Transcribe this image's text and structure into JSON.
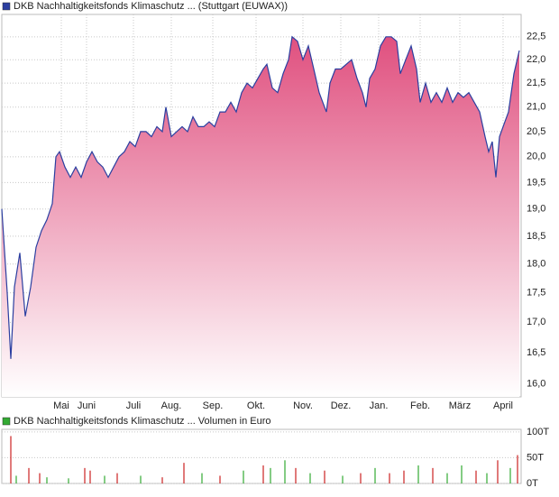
{
  "chart_data": [
    {
      "type": "area",
      "log_scale": true,
      "grid": true,
      "x": [
        1,
        4,
        6,
        8,
        11,
        14,
        17,
        20,
        23,
        26,
        29,
        31,
        33,
        36,
        39,
        42,
        45,
        48,
        51,
        54,
        57,
        60,
        63,
        66,
        69,
        72,
        75,
        78,
        81,
        84,
        87,
        90,
        92,
        95,
        98,
        101,
        104,
        107,
        110,
        113,
        116,
        119,
        122,
        125,
        128,
        131,
        134,
        137,
        140,
        143,
        146,
        148,
        151,
        154,
        157,
        160,
        162,
        165,
        168,
        171,
        174,
        177,
        179,
        181,
        183,
        186,
        189,
        192,
        195,
        198,
        201,
        203,
        205,
        208,
        211,
        214,
        217,
        220,
        222,
        225,
        228,
        231,
        233,
        236,
        239,
        242,
        245,
        248,
        251,
        254,
        257,
        260,
        263,
        266,
        269,
        271,
        273,
        275,
        277,
        279,
        282,
        285,
        288
      ],
      "series": [
        {
          "name": "DKB Nachhaltigkeitsfonds Klimaschutz ... (Stuttgart (EUWAX))",
          "color": "#2b3fa0",
          "fill_color": "#e0507f",
          "values": [
            19.0,
            17.5,
            16.4,
            17.6,
            18.2,
            17.1,
            17.6,
            18.3,
            18.6,
            18.8,
            19.1,
            20.0,
            20.1,
            19.8,
            19.6,
            19.8,
            19.6,
            19.9,
            20.1,
            19.9,
            19.8,
            19.6,
            19.8,
            20.0,
            20.1,
            20.3,
            20.2,
            20.5,
            20.5,
            20.4,
            20.6,
            20.5,
            21.0,
            20.4,
            20.5,
            20.6,
            20.5,
            20.8,
            20.6,
            20.6,
            20.7,
            20.6,
            20.9,
            20.9,
            21.1,
            20.9,
            21.3,
            21.5,
            21.4,
            21.6,
            21.8,
            21.9,
            21.4,
            21.3,
            21.7,
            22.0,
            22.5,
            22.4,
            22.0,
            22.3,
            21.8,
            21.3,
            21.1,
            20.9,
            21.5,
            21.8,
            21.8,
            21.9,
            22.0,
            21.6,
            21.3,
            21.0,
            21.6,
            21.8,
            22.3,
            22.5,
            22.5,
            22.4,
            21.7,
            22.0,
            22.3,
            21.8,
            21.1,
            21.5,
            21.1,
            21.3,
            21.1,
            21.4,
            21.1,
            21.3,
            21.2,
            21.3,
            21.1,
            20.9,
            20.4,
            20.1,
            20.3,
            19.6,
            20.4,
            20.6,
            20.9,
            21.7,
            22.2
          ]
        }
      ],
      "xlim": [
        1,
        289
      ],
      "xticks": [
        {
          "value": 34,
          "label": "Mai"
        },
        {
          "value": 48,
          "label": "Juni"
        },
        {
          "value": 74,
          "label": "Juli"
        },
        {
          "value": 95,
          "label": "Aug."
        },
        {
          "value": 118,
          "label": "Sep."
        },
        {
          "value": 142,
          "label": "Okt."
        },
        {
          "value": 168,
          "label": "Nov."
        },
        {
          "value": 189,
          "label": "Dez."
        },
        {
          "value": 210,
          "label": "Jan."
        },
        {
          "value": 233,
          "label": "Feb."
        },
        {
          "value": 255,
          "label": "März"
        },
        {
          "value": 279,
          "label": "April"
        }
      ],
      "ylim": [
        15.8,
        23.0
      ],
      "yticks": [
        {
          "value": 16.0,
          "label": "16,0"
        },
        {
          "value": 16.5,
          "label": "16,5"
        },
        {
          "value": 17.0,
          "label": "17,0"
        },
        {
          "value": 17.5,
          "label": "17,5"
        },
        {
          "value": 18.0,
          "label": "18,0"
        },
        {
          "value": 18.5,
          "label": "18,5"
        },
        {
          "value": 19.0,
          "label": "19,0"
        },
        {
          "value": 19.5,
          "label": "19,5"
        },
        {
          "value": 20.0,
          "label": "20,0"
        },
        {
          "value": 20.5,
          "label": "20,5"
        },
        {
          "value": 21.0,
          "label": "21,0"
        },
        {
          "value": 21.5,
          "label": "21,5"
        },
        {
          "value": 22.0,
          "label": "22,0"
        },
        {
          "value": 22.5,
          "label": "22,5"
        }
      ]
    },
    {
      "type": "bar",
      "grid": true,
      "x": [
        6,
        9,
        16,
        22,
        26,
        38,
        47,
        50,
        58,
        65,
        78,
        90,
        102,
        112,
        122,
        135,
        146,
        150,
        158,
        164,
        172,
        180,
        190,
        200,
        208,
        216,
        224,
        232,
        240,
        248,
        256,
        264,
        270,
        276,
        283,
        287
      ],
      "series": [
        {
          "name": "DKB Nachhaltigkeitsfonds Klimaschutz ... Volumen in Euro",
          "color": "#33aa33",
          "values": [
            92000,
            15000,
            30000,
            20000,
            12000,
            10000,
            30000,
            25000,
            15000,
            20000,
            15000,
            12000,
            40000,
            20000,
            15000,
            25000,
            35000,
            30000,
            45000,
            30000,
            20000,
            25000,
            15000,
            20000,
            30000,
            20000,
            25000,
            35000,
            30000,
            20000,
            35000,
            25000,
            20000,
            45000,
            30000,
            55000
          ],
          "colors": [
            "#cc2222",
            "#33aa33",
            "#cc2222",
            "#cc2222",
            "#33aa33",
            "#33aa33",
            "#cc2222",
            "#cc2222",
            "#33aa33",
            "#cc2222",
            "#33aa33",
            "#cc2222",
            "#cc2222",
            "#33aa33",
            "#cc2222",
            "#33aa33",
            "#cc2222",
            "#33aa33",
            "#33aa33",
            "#cc2222",
            "#33aa33",
            "#cc2222",
            "#33aa33",
            "#cc2222",
            "#33aa33",
            "#cc2222",
            "#cc2222",
            "#33aa33",
            "#cc2222",
            "#33aa33",
            "#33aa33",
            "#cc2222",
            "#33aa33",
            "#cc2222",
            "#33aa33",
            "#cc2222"
          ]
        }
      ],
      "xlim": [
        1,
        289
      ],
      "ylim": [
        0,
        105000
      ],
      "yticks": [
        {
          "value": 0,
          "label": "0T"
        },
        {
          "value": 50000,
          "label": "50T"
        },
        {
          "value": 100000,
          "label": "100T"
        }
      ]
    }
  ]
}
